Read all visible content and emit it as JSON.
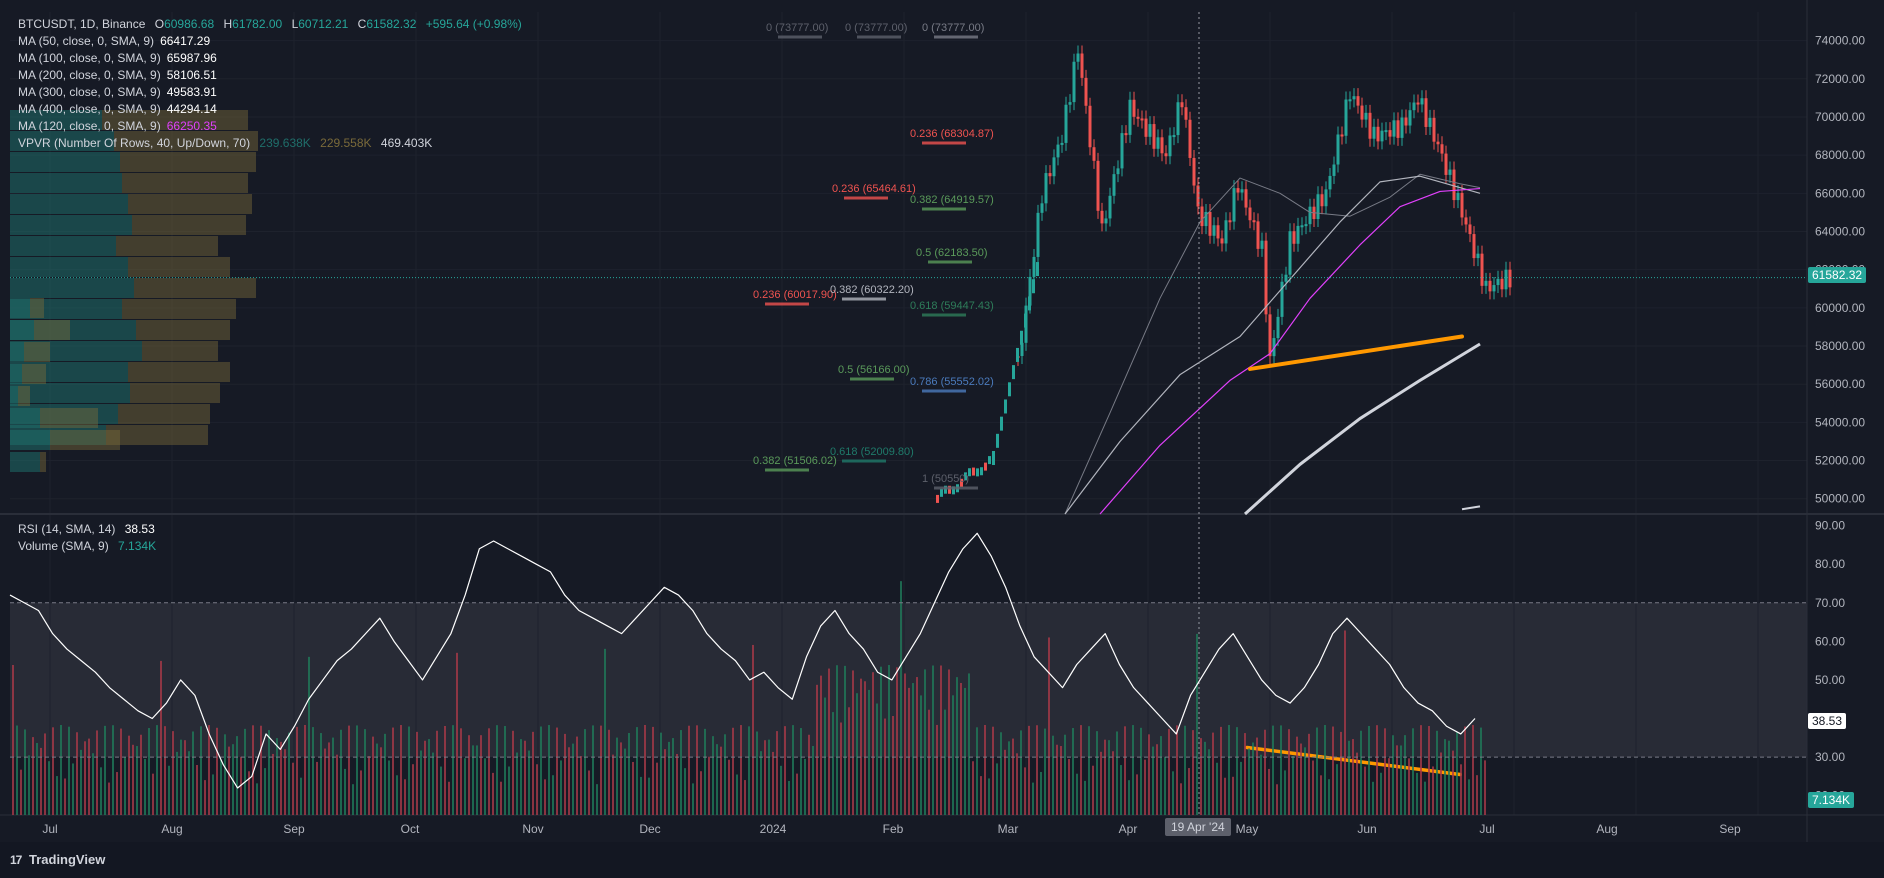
{
  "header": {
    "symbol": "BTCUSDT, 1D, Binance",
    "ohlc": [
      {
        "label": "O",
        "value": "60986.68"
      },
      {
        "label": "H",
        "value": "61782.00"
      },
      {
        "label": "L",
        "value": "60712.21"
      },
      {
        "label": "C",
        "value": "61582.32"
      }
    ],
    "change": "+595.64 (+0.98%)"
  },
  "indicators": [
    {
      "label": "MA (50, close, 0, SMA, 9)",
      "value": "66417.29",
      "color": "#ffffff"
    },
    {
      "label": "MA (100, close, 0, SMA, 9)",
      "value": "65987.96",
      "color": "#ffffff"
    },
    {
      "label": "MA (200, close, 0, SMA, 9)",
      "value": "58106.51",
      "color": "#ffffff"
    },
    {
      "label": "MA (300, close, 0, SMA, 9)",
      "value": "49583.91",
      "color": "#ffffff"
    },
    {
      "label": "MA (400, close, 0, SMA, 9)",
      "value": "44294.14",
      "color": "#ffffff"
    },
    {
      "label": "MA (120, close, 0, SMA, 9)",
      "value": "66250.35",
      "color": "#e040fb"
    }
  ],
  "vpvr": {
    "label": "VPVR (Number Of Rows, 40, Up/Down, 70)",
    "values": [
      "239.638K",
      "229.558K",
      "469.403K"
    ]
  },
  "rsi_legend": {
    "label": "RSI (14, SMA, 14)",
    "value": "38.53"
  },
  "volume_legend": {
    "label": "Volume (SMA, 9)",
    "value": "7.134K"
  },
  "last_price_tag": "61582.32",
  "rsi_tag": "38.53",
  "volume_tag": "7.134K",
  "crosshair_date": "19 Apr '24",
  "brand": "TradingView",
  "colors": {
    "up": "#26a69a",
    "down": "#ef5350",
    "ma120": "#e040fb",
    "trend": "#ff9800",
    "bg": "#161a25"
  },
  "chart_data": [
    {
      "type": "line",
      "title": "",
      "description_note": "",
      "x_ticks": [
        "Jul",
        "Aug",
        "Sep",
        "Oct",
        "Nov",
        "Dec",
        "2024",
        "Feb",
        "Mar",
        "Apr",
        "May",
        "Jun",
        "Jul",
        "Aug",
        "Sep"
      ],
      "y_ticks": [
        "74000.00",
        "72000.00",
        "70000.00",
        "68000.00",
        "66000.00",
        "64000.00",
        "62000.00",
        "60000.00",
        "58000.00",
        "56000.00",
        "54000.00",
        "52000.00",
        "50000.00"
      ],
      "ylim": [
        49200,
        75500
      ],
      "series": [
        {
          "name": "",
          "x": [
            "2024-02-28",
            "2024-03-05",
            "2024-03-10",
            "2024-03-14",
            "2024-03-20",
            "2024-03-27",
            "2024-04-05",
            "2024-04-09",
            "2024-04-13",
            "2024-04-19",
            "2024-04-23",
            "2024-04-29",
            "2024-05-01",
            "2024-05-06",
            "2024-05-15",
            "2024-05-21",
            "2024-05-27",
            "2024-06-03",
            "2024-06-07",
            "2024-06-12",
            "2024-06-18",
            "2024-06-24",
            "2024-06-30"
          ],
          "values": [
            57000,
            66000,
            69000,
            73600,
            64000,
            70500,
            68000,
            71000,
            65000,
            63500,
            66500,
            63000,
            57200,
            63500,
            66000,
            71300,
            69000,
            69500,
            71000,
            68500,
            65000,
            61000,
            61582
          ]
        }
      ],
      "fib_levels": [
        {
          "ratio": "0",
          "value": "73777.00"
        },
        {
          "ratio": "0",
          "value": "73777.00"
        },
        {
          "ratio": "0",
          "value": "73777.00"
        },
        {
          "ratio": "0.236",
          "value": "68304.87"
        },
        {
          "ratio": "0.236",
          "value": "65464.61"
        },
        {
          "ratio": "0.382",
          "value": "64919.57"
        },
        {
          "ratio": "0.5",
          "value": "62183.50"
        },
        {
          "ratio": "0.236",
          "value": "60017.90"
        },
        {
          "ratio": "0.382",
          "value": "60322.20"
        },
        {
          "ratio": "0.618",
          "value": "59447.43"
        },
        {
          "ratio": "0.5",
          "value": "56166.00"
        },
        {
          "ratio": "0.786",
          "value": "55552.02"
        },
        {
          "ratio": "0.618",
          "value": "52009.80"
        },
        {
          "ratio": "0.382",
          "value": "51506.02"
        },
        {
          "ratio": "1",
          "value": "50550"
        }
      ]
    },
    {
      "type": "line",
      "title": "",
      "y_ticks": [
        "90.00",
        "80.00",
        "70.00",
        "60.00",
        "50.00",
        "40.00",
        "30.00",
        "20.00"
      ],
      "ylim": [
        15,
        93
      ],
      "bands": [
        30,
        70
      ],
      "series": [
        {
          "name": "RSI",
          "values": [
            72,
            70,
            68,
            62,
            58,
            55,
            52,
            48,
            45,
            42,
            40,
            44,
            50,
            46,
            36,
            28,
            22,
            25,
            36,
            32,
            38,
            45,
            50,
            55,
            58,
            62,
            66,
            60,
            55,
            50,
            56,
            62,
            72,
            84,
            86,
            84,
            82,
            80,
            78,
            72,
            68,
            66,
            64,
            62,
            66,
            70,
            74,
            72,
            68,
            62,
            58,
            55,
            50,
            52,
            48,
            45,
            56,
            64,
            68,
            62,
            58,
            52,
            50,
            56,
            62,
            70,
            78,
            84,
            88,
            82,
            74,
            64,
            56,
            52,
            48,
            54,
            58,
            62,
            54,
            48,
            44,
            40,
            36,
            46,
            52,
            58,
            62,
            56,
            50,
            46,
            44,
            48,
            54,
            62,
            66,
            62,
            58,
            54,
            48,
            44,
            42,
            38,
            36,
            40
          ]
        }
      ]
    }
  ]
}
